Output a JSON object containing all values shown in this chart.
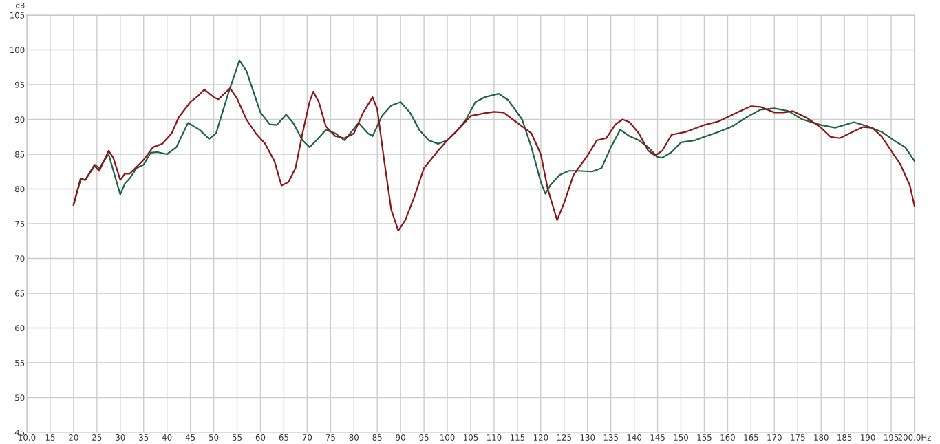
{
  "chart_data": {
    "type": "line",
    "ylabel": "dB",
    "xlim": [
      10,
      200
    ],
    "ylim": [
      45,
      105
    ],
    "xticks": [
      {
        "value": 10,
        "label": "10,0"
      },
      15,
      20,
      25,
      30,
      35,
      40,
      45,
      50,
      55,
      60,
      65,
      70,
      75,
      80,
      85,
      90,
      95,
      100,
      105,
      110,
      115,
      120,
      125,
      130,
      135,
      140,
      145,
      150,
      155,
      160,
      165,
      170,
      175,
      180,
      185,
      190,
      195,
      {
        "value": 200,
        "label": "200,0Hz"
      }
    ],
    "yticks": [
      45,
      50,
      55,
      60,
      65,
      70,
      75,
      80,
      85,
      90,
      95,
      100,
      105
    ],
    "grid": true,
    "line_style": "solid",
    "marker": "none",
    "series": [
      {
        "color": "#1d6347",
        "x": [
          20,
          21.5,
          22.5,
          24.5,
          25.5,
          27.5,
          30,
          31,
          32,
          33.5,
          35,
          36.5,
          38,
          40,
          42,
          44.5,
          47,
          49,
          50.5,
          53,
          55.5,
          57,
          60,
          62,
          63.5,
          65.5,
          67,
          69,
          70.5,
          72,
          74,
          76,
          78,
          81,
          83,
          84,
          86,
          88,
          90,
          92,
          94,
          96,
          98,
          100,
          102,
          104,
          106,
          108,
          111,
          113,
          116,
          118,
          120,
          121,
          122,
          124,
          126,
          128,
          131,
          133,
          135,
          137,
          139,
          141,
          143,
          145,
          146,
          148,
          150,
          153,
          155,
          158,
          161,
          164,
          167,
          170,
          173,
          176,
          180,
          183,
          187,
          190,
          193,
          196,
          198,
          200
        ],
        "values": [
          77.7,
          81.5,
          81.3,
          83.5,
          83.0,
          85.0,
          79.2,
          80.8,
          81.5,
          83.0,
          83.5,
          85.2,
          85.3,
          85.0,
          86.0,
          89.5,
          88.5,
          87.2,
          88.0,
          93.5,
          98.5,
          97.0,
          91.0,
          89.3,
          89.2,
          90.7,
          89.5,
          87.0,
          86.0,
          87.0,
          88.5,
          88.0,
          87.0,
          89.5,
          88.0,
          87.6,
          90.5,
          92.0,
          92.5,
          91.0,
          88.5,
          87.0,
          86.5,
          87.0,
          88.3,
          90.0,
          92.5,
          93.2,
          93.7,
          92.8,
          90.0,
          86.0,
          81.0,
          79.3,
          80.5,
          82.0,
          82.6,
          82.6,
          82.5,
          83.0,
          86.0,
          88.5,
          87.6,
          87.0,
          86.0,
          84.6,
          84.5,
          85.3,
          86.7,
          87.0,
          87.5,
          88.2,
          89.0,
          90.3,
          91.4,
          91.6,
          91.2,
          90.0,
          89.2,
          88.8,
          89.6,
          89.0,
          88.2,
          86.8,
          86.0,
          84.0
        ]
      },
      {
        "color": "#8c1515",
        "x": [
          20,
          21.5,
          22.5,
          24.5,
          25.5,
          27.5,
          28.5,
          30,
          31,
          32,
          34,
          35,
          37,
          39,
          41,
          42.5,
          45,
          46.5,
          48,
          50,
          51,
          53.5,
          55,
          57,
          59,
          61,
          63,
          64.5,
          66,
          67.5,
          69,
          70.5,
          71.3,
          72.5,
          74,
          76,
          78,
          80,
          82,
          84,
          85,
          86.5,
          88,
          89.5,
          91,
          93,
          95,
          98,
          100,
          103,
          105,
          108,
          110,
          112,
          114,
          116,
          118,
          120,
          121.5,
          123.5,
          125,
          127,
          130,
          132,
          134,
          136,
          137.5,
          139,
          141,
          143,
          144.5,
          146,
          148,
          151,
          155,
          158,
          162,
          165,
          167,
          170,
          172,
          174,
          177,
          180,
          182,
          184,
          187,
          189,
          191,
          193,
          195,
          197,
          199,
          200
        ],
        "values": [
          77.7,
          81.4,
          81.3,
          83.3,
          82.6,
          85.5,
          84.5,
          81.3,
          82.2,
          82.2,
          83.5,
          84.2,
          86.0,
          86.5,
          88.0,
          90.3,
          92.5,
          93.3,
          94.3,
          93.2,
          92.9,
          94.5,
          93.0,
          90.0,
          88.0,
          86.5,
          84.0,
          80.5,
          81.0,
          83.0,
          88.0,
          92.5,
          94.0,
          92.5,
          89.0,
          87.6,
          87.3,
          88.0,
          91.0,
          93.2,
          91.5,
          84.0,
          77.0,
          74.0,
          75.5,
          79.0,
          83.0,
          85.5,
          87.0,
          89.0,
          90.5,
          90.9,
          91.1,
          91.0,
          90.0,
          89.0,
          88.0,
          85.0,
          80.0,
          75.5,
          78.0,
          82.0,
          84.8,
          87.0,
          87.3,
          89.3,
          90.0,
          89.6,
          88.0,
          85.5,
          84.8,
          85.5,
          87.8,
          88.2,
          89.2,
          89.7,
          91.0,
          91.9,
          91.8,
          91.0,
          91.0,
          91.2,
          90.2,
          88.8,
          87.5,
          87.3,
          88.3,
          88.9,
          88.8,
          87.5,
          85.5,
          83.5,
          80.5,
          77.5
        ]
      }
    ]
  }
}
